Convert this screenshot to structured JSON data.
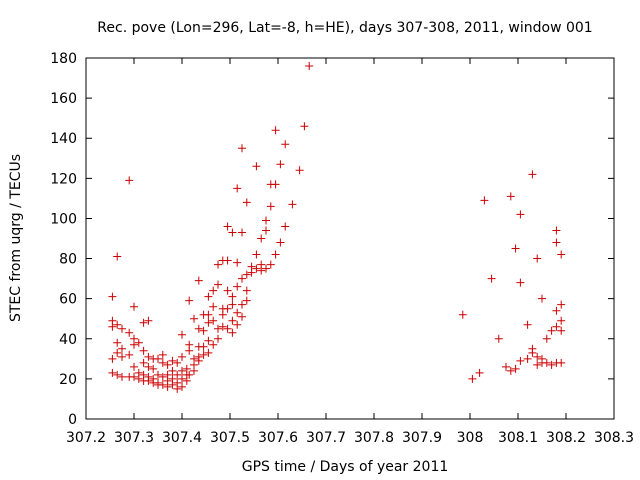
{
  "chart_data": {
    "type": "scatter",
    "title": "Rec. pove (Lon=296, Lat=-8, h=HE), days 307-308, 2011, window 001",
    "xlabel": "GPS time / Days of year 2011",
    "ylabel": "STEC from uqrg / TECUs",
    "xlim": [
      307.2,
      308.3
    ],
    "ylim": [
      0,
      180
    ],
    "x_ticks": [
      307.2,
      307.3,
      307.4,
      307.5,
      307.6,
      307.7,
      307.8,
      307.9,
      308,
      308.1,
      308.2,
      308.3
    ],
    "x_tick_labels": [
      "307.2",
      "307.3",
      "307.4",
      "307.5",
      "307.6",
      "307.7",
      "307.8",
      "307.9",
      "308",
      "308.1",
      "308.2",
      "308.3"
    ],
    "y_ticks": [
      0,
      20,
      40,
      60,
      80,
      100,
      120,
      140,
      160,
      180
    ],
    "y_tick_labels": [
      "0",
      "20",
      "40",
      "60",
      "80",
      "100",
      "120",
      "140",
      "160",
      "180"
    ],
    "grid": false,
    "marker": "plus",
    "color": "#cc0000",
    "points": [
      [
        307.255,
        61
      ],
      [
        307.255,
        49
      ],
      [
        307.255,
        46
      ],
      [
        307.255,
        30
      ],
      [
        307.255,
        23
      ],
      [
        307.265,
        81
      ],
      [
        307.265,
        47
      ],
      [
        307.265,
        38
      ],
      [
        307.265,
        33
      ],
      [
        307.265,
        22
      ],
      [
        307.275,
        45
      ],
      [
        307.275,
        35
      ],
      [
        307.275,
        31
      ],
      [
        307.275,
        21
      ],
      [
        307.29,
        119
      ],
      [
        307.29,
        43
      ],
      [
        307.29,
        32
      ],
      [
        307.29,
        21
      ],
      [
        307.3,
        56
      ],
      [
        307.3,
        40
      ],
      [
        307.3,
        37
      ],
      [
        307.3,
        26
      ],
      [
        307.3,
        21
      ],
      [
        307.31,
        38
      ],
      [
        307.31,
        23
      ],
      [
        307.31,
        20
      ],
      [
        307.32,
        48
      ],
      [
        307.32,
        34
      ],
      [
        307.32,
        28
      ],
      [
        307.32,
        22
      ],
      [
        307.32,
        19
      ],
      [
        307.33,
        49
      ],
      [
        307.33,
        31
      ],
      [
        307.33,
        26
      ],
      [
        307.33,
        21
      ],
      [
        307.33,
        19
      ],
      [
        307.34,
        30
      ],
      [
        307.34,
        25
      ],
      [
        307.34,
        20
      ],
      [
        307.34,
        18
      ],
      [
        307.35,
        30
      ],
      [
        307.35,
        22
      ],
      [
        307.35,
        18
      ],
      [
        307.35,
        17
      ],
      [
        307.36,
        32
      ],
      [
        307.36,
        28
      ],
      [
        307.36,
        21
      ],
      [
        307.36,
        17
      ],
      [
        307.37,
        27
      ],
      [
        307.37,
        22
      ],
      [
        307.37,
        19
      ],
      [
        307.37,
        16
      ],
      [
        307.38,
        29
      ],
      [
        307.38,
        24
      ],
      [
        307.38,
        20
      ],
      [
        307.38,
        17
      ],
      [
        307.39,
        28
      ],
      [
        307.39,
        22
      ],
      [
        307.39,
        18
      ],
      [
        307.39,
        15
      ],
      [
        307.4,
        42
      ],
      [
        307.4,
        31
      ],
      [
        307.4,
        24
      ],
      [
        307.4,
        20
      ],
      [
        307.4,
        16
      ],
      [
        307.41,
        25
      ],
      [
        307.41,
        22
      ],
      [
        307.41,
        19
      ],
      [
        307.415,
        59
      ],
      [
        307.415,
        37
      ],
      [
        307.415,
        34
      ],
      [
        307.415,
        22
      ],
      [
        307.425,
        50
      ],
      [
        307.425,
        30
      ],
      [
        307.425,
        27
      ],
      [
        307.425,
        24
      ],
      [
        307.435,
        69
      ],
      [
        307.435,
        45
      ],
      [
        307.435,
        36
      ],
      [
        307.435,
        31
      ],
      [
        307.435,
        29
      ],
      [
        307.445,
        52
      ],
      [
        307.445,
        44
      ],
      [
        307.445,
        36
      ],
      [
        307.445,
        32
      ],
      [
        307.455,
        61
      ],
      [
        307.455,
        52
      ],
      [
        307.455,
        48
      ],
      [
        307.455,
        39
      ],
      [
        307.455,
        33
      ],
      [
        307.465,
        64
      ],
      [
        307.465,
        56
      ],
      [
        307.465,
        49
      ],
      [
        307.465,
        37
      ],
      [
        307.475,
        77
      ],
      [
        307.475,
        67
      ],
      [
        307.475,
        45
      ],
      [
        307.475,
        40
      ],
      [
        307.485,
        79
      ],
      [
        307.485,
        55
      ],
      [
        307.485,
        52
      ],
      [
        307.485,
        46
      ],
      [
        307.495,
        96
      ],
      [
        307.495,
        79
      ],
      [
        307.495,
        64
      ],
      [
        307.495,
        55
      ],
      [
        307.495,
        45
      ],
      [
        307.505,
        93
      ],
      [
        307.505,
        61
      ],
      [
        307.505,
        57
      ],
      [
        307.505,
        49
      ],
      [
        307.505,
        43
      ],
      [
        307.515,
        115
      ],
      [
        307.515,
        78
      ],
      [
        307.515,
        66
      ],
      [
        307.515,
        53
      ],
      [
        307.515,
        47
      ],
      [
        307.525,
        135
      ],
      [
        307.525,
        93
      ],
      [
        307.525,
        70
      ],
      [
        307.525,
        57
      ],
      [
        307.525,
        51
      ],
      [
        307.535,
        108
      ],
      [
        307.535,
        72
      ],
      [
        307.535,
        64
      ],
      [
        307.535,
        59
      ],
      [
        307.545,
        76
      ],
      [
        307.545,
        73
      ],
      [
        307.555,
        126
      ],
      [
        307.555,
        82
      ],
      [
        307.555,
        75
      ],
      [
        307.565,
        90
      ],
      [
        307.565,
        77
      ],
      [
        307.565,
        74
      ],
      [
        307.575,
        99
      ],
      [
        307.575,
        94
      ],
      [
        307.575,
        75
      ],
      [
        307.585,
        117
      ],
      [
        307.585,
        106
      ],
      [
        307.585,
        77
      ],
      [
        307.595,
        144
      ],
      [
        307.595,
        117
      ],
      [
        307.595,
        82
      ],
      [
        307.605,
        127
      ],
      [
        307.605,
        88
      ],
      [
        307.615,
        137
      ],
      [
        307.615,
        96
      ],
      [
        307.63,
        107
      ],
      [
        307.645,
        124
      ],
      [
        307.655,
        146
      ],
      [
        307.665,
        176
      ],
      [
        307.985,
        52
      ],
      [
        308.005,
        20
      ],
      [
        308.02,
        23
      ],
      [
        308.03,
        109
      ],
      [
        308.045,
        70
      ],
      [
        308.06,
        40
      ],
      [
        308.075,
        26
      ],
      [
        308.085,
        111
      ],
      [
        308.085,
        24
      ],
      [
        308.095,
        85
      ],
      [
        308.095,
        25
      ],
      [
        308.105,
        102
      ],
      [
        308.105,
        68
      ],
      [
        308.105,
        29
      ],
      [
        308.12,
        47
      ],
      [
        308.12,
        30
      ],
      [
        308.13,
        122
      ],
      [
        308.13,
        35
      ],
      [
        308.13,
        33
      ],
      [
        308.14,
        80
      ],
      [
        308.14,
        31
      ],
      [
        308.14,
        27
      ],
      [
        308.15,
        60
      ],
      [
        308.15,
        30
      ],
      [
        308.15,
        28
      ],
      [
        308.16,
        40
      ],
      [
        308.16,
        28
      ],
      [
        308.17,
        44
      ],
      [
        308.17,
        27
      ],
      [
        308.18,
        94
      ],
      [
        308.18,
        88
      ],
      [
        308.18,
        54
      ],
      [
        308.18,
        46
      ],
      [
        308.18,
        28
      ],
      [
        308.19,
        82
      ],
      [
        308.19,
        57
      ],
      [
        308.19,
        49
      ],
      [
        308.19,
        44
      ],
      [
        308.19,
        28
      ]
    ]
  }
}
